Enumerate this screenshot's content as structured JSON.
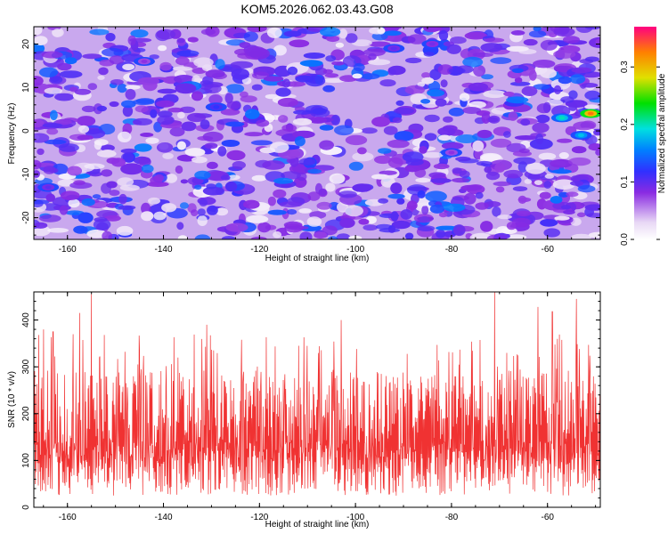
{
  "title": "KOM5.2026.062.03.43.G08",
  "chart_data": [
    {
      "type": "heatmap",
      "xlabel": "Height of straight line (km)",
      "ylabel": "Frequency (Hz)",
      "xlim": [
        -167,
        -49
      ],
      "ylim": [
        -25,
        24
      ],
      "xticks": [
        -160,
        -140,
        -120,
        -100,
        -80,
        -60
      ],
      "yticks": [
        -20,
        -10,
        0,
        10,
        20
      ],
      "colorbar": {
        "label": "Normalized spectral amplitude",
        "range": [
          0,
          0.37
        ],
        "ticks": [
          0.0,
          0.1,
          0.2,
          0.3
        ]
      },
      "hotspots": [
        {
          "x": -51,
          "y": 4,
          "value": 0.33
        },
        {
          "x": -57,
          "y": 3,
          "value": 0.2
        },
        {
          "x": -53,
          "y": -1,
          "value": 0.18
        },
        {
          "x": -129,
          "y": 5.5,
          "value": 0.12
        },
        {
          "x": -164,
          "y": -13,
          "value": 0.1
        },
        {
          "x": -92,
          "y": 19,
          "value": 0.1
        },
        {
          "x": -84,
          "y": 20,
          "value": 0.09
        },
        {
          "x": -80,
          "y": -5,
          "value": 0.08
        },
        {
          "x": -144,
          "y": 16,
          "value": 0.08
        }
      ],
      "grid": false
    },
    {
      "type": "line",
      "xlabel": "Height of straight line (km)",
      "ylabel": "SNR (10 * v/v)",
      "xlim": [
        -167,
        -49
      ],
      "ylim": [
        0,
        460
      ],
      "xticks": [
        -160,
        -140,
        -120,
        -100,
        -80,
        -60
      ],
      "yticks": [
        0,
        100,
        200,
        300,
        400
      ],
      "series": [
        {
          "color": "#f03232",
          "mean": 140,
          "typical_range": [
            30,
            320
          ],
          "peaks": [
            {
              "x": -155,
              "y": 455
            },
            {
              "x": -71,
              "y": 460
            },
            {
              "x": -54,
              "y": 445
            },
            {
              "x": -157.5,
              "y": 415
            },
            {
              "x": -62,
              "y": 428
            },
            {
              "x": -59,
              "y": 418
            },
            {
              "x": -103,
              "y": 400
            },
            {
              "x": -131,
              "y": 390
            },
            {
              "x": -165,
              "y": 380
            },
            {
              "x": -163,
              "y": 375
            }
          ]
        }
      ],
      "grid": false
    }
  ]
}
